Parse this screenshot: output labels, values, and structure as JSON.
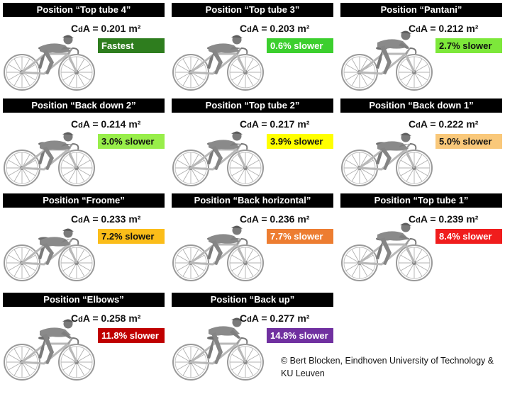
{
  "panels": [
    {
      "title": "Position “Top tube 4”",
      "cda_prefix": "C",
      "cda_sub": "d",
      "cda_rest": "A = 0.201 m²",
      "badge": "Fastest",
      "badge_color": "#2e7d1e",
      "badge_text_color": "#ffffff"
    },
    {
      "title": "Position “Top tube 3”",
      "cda_prefix": "C",
      "cda_sub": "d",
      "cda_rest": "A = 0.203 m²",
      "badge": "0.6% slower",
      "badge_color": "#3ccf2e",
      "badge_text_color": "#ffffff"
    },
    {
      "title": "Position “Pantani”",
      "cda_prefix": "C",
      "cda_sub": "d",
      "cda_rest": "A = 0.212 m²",
      "badge": "2.7% slower",
      "badge_color": "#7de83a",
      "badge_text_color": "#111111"
    },
    {
      "title": "Position “Back down 2”",
      "cda_prefix": "C",
      "cda_sub": "d",
      "cda_rest": "A = 0.214 m²",
      "badge": "3.0% slower",
      "badge_color": "#98ee4a",
      "badge_text_color": "#111111"
    },
    {
      "title": "Position “Top tube 2”",
      "cda_prefix": "C",
      "cda_sub": "d",
      "cda_rest": "A = 0.217 m²",
      "badge": "3.9% slower",
      "badge_color": "#ffff00",
      "badge_text_color": "#111111"
    },
    {
      "title": "Position “Back down 1”",
      "cda_prefix": "C",
      "cda_sub": "d",
      "cda_rest": "A = 0.222 m²",
      "badge": "5.0% slower",
      "badge_color": "#f9c87a",
      "badge_text_color": "#111111"
    },
    {
      "title": "Position “Froome”",
      "cda_prefix": "C",
      "cda_sub": "d",
      "cda_rest": "A = 0.233 m²",
      "badge": "7.2% slower",
      "badge_color": "#fbbd19",
      "badge_text_color": "#111111"
    },
    {
      "title": "Position “Back horizontal”",
      "cda_prefix": "C",
      "cda_sub": "d",
      "cda_rest": "A = 0.236 m²",
      "badge": "7.7% slower",
      "badge_color": "#ed7d31",
      "badge_text_color": "#ffffff"
    },
    {
      "title": "Position “Top tube 1”",
      "cda_prefix": "C",
      "cda_sub": "d",
      "cda_rest": "A = 0.239 m²",
      "badge": "8.4% slower",
      "badge_color": "#f01d1d",
      "badge_text_color": "#ffffff"
    },
    {
      "title": "Position “Elbows”",
      "cda_prefix": "C",
      "cda_sub": "d",
      "cda_rest": "A = 0.258 m²",
      "badge": "11.8% slower",
      "badge_color": "#c00000",
      "badge_text_color": "#ffffff"
    },
    {
      "title": "Position “Back up”",
      "cda_prefix": "C",
      "cda_sub": "d",
      "cda_rest": "A = 0.277 m²",
      "badge": "14.8% slower",
      "badge_color": "#7030a0",
      "badge_text_color": "#ffffff"
    }
  ],
  "credit": "© Bert Blocken, Eindhoven University of Technology & KU Leuven",
  "colors": {
    "title_bar": "#000000",
    "figure": "#8a8a8a",
    "wheel": "#9a9a9a"
  }
}
